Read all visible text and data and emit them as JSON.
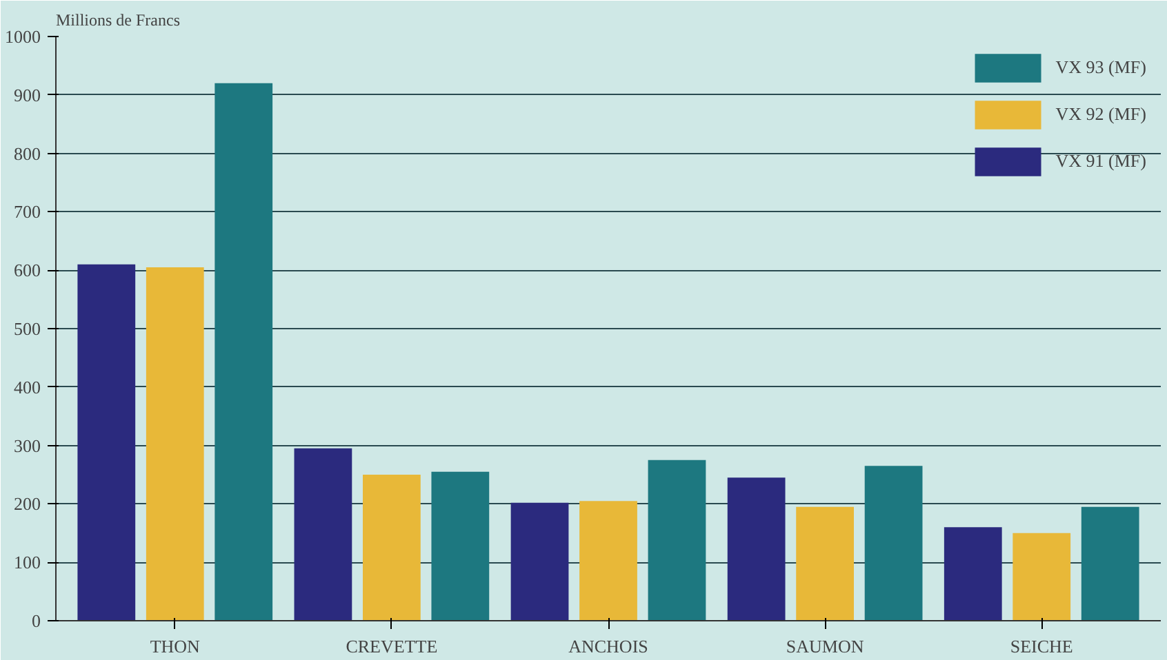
{
  "chart_data": {
    "type": "bar",
    "ylabel": "Millions de Francs",
    "categories": [
      "THON",
      "CREVETTE",
      "ANCHOIS",
      "SAUMON",
      "SEICHE"
    ],
    "series": [
      {
        "name": "VX 91 (MF)",
        "color": "#2b2a7e",
        "values": [
          610,
          295,
          202,
          245,
          160
        ]
      },
      {
        "name": "VX 92 (MF)",
        "color": "#e8b838",
        "values": [
          605,
          250,
          205,
          195,
          150
        ]
      },
      {
        "name": "VX 93 (MF)",
        "color": "#1d7880",
        "values": [
          920,
          255,
          275,
          265,
          195
        ]
      }
    ],
    "ylim": [
      0,
      1000
    ],
    "yticks": [
      0,
      100,
      200,
      300,
      400,
      500,
      600,
      700,
      800,
      900,
      1000
    ],
    "grid": "y",
    "legend": "top right"
  }
}
